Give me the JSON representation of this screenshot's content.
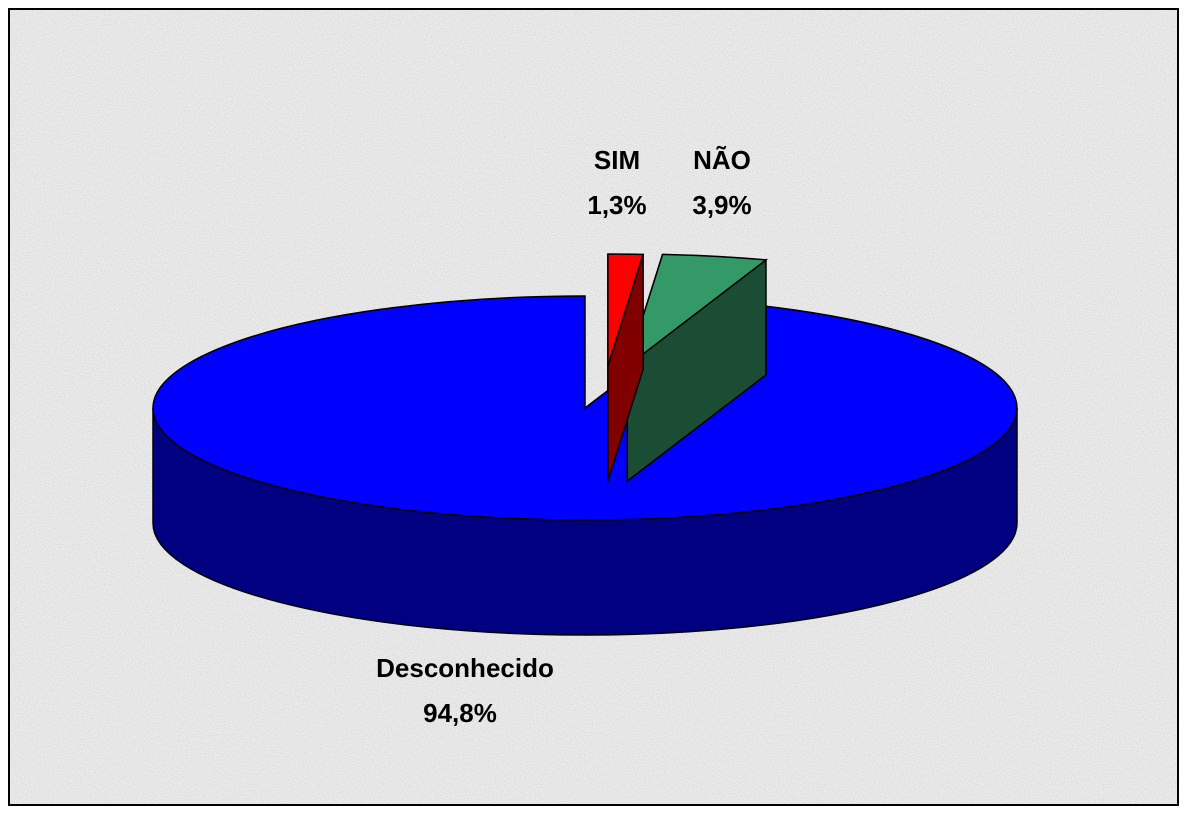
{
  "chart_data": {
    "type": "pie3d",
    "categories": [
      "SIM",
      "NÃO",
      "Desconhecido"
    ],
    "values": [
      1.3,
      3.9,
      94.8
    ],
    "value_labels": [
      "1,3%",
      "3,9%",
      "94,8%"
    ],
    "colors": [
      "#ff0000",
      "#339966",
      "#0000ff"
    ]
  }
}
